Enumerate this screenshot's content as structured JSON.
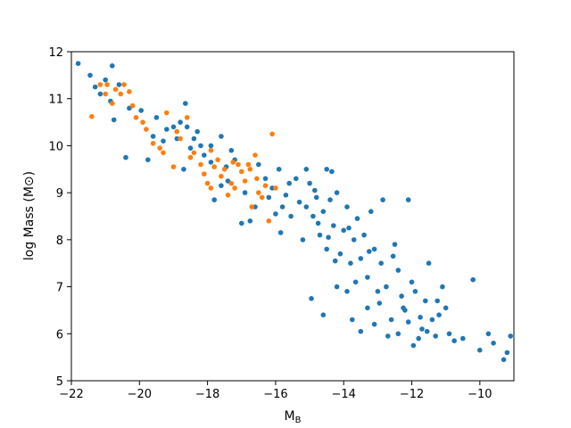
{
  "chart_data": {
    "type": "scatter",
    "xlabel_main": "M",
    "xlabel_sub": "B",
    "ylabel": "log Mass (M⊙)",
    "xlim": [
      -22,
      -9
    ],
    "ylim": [
      5,
      12
    ],
    "xticks": [
      -22,
      -20,
      -18,
      -16,
      -14,
      -12,
      -10
    ],
    "yticks": [
      5,
      6,
      7,
      8,
      9,
      10,
      11,
      12
    ],
    "xtick_labels": [
      "−22",
      "−20",
      "−18",
      "−16",
      "−14",
      "−12",
      "−10"
    ],
    "ytick_labels": [
      "5",
      "6",
      "7",
      "8",
      "9",
      "10",
      "11",
      "12"
    ],
    "grid": false,
    "series": [
      {
        "color": "#1f77b4",
        "points": [
          [
            -21.8,
            11.75
          ],
          [
            -21.45,
            11.5
          ],
          [
            -21.3,
            11.25
          ],
          [
            -21.15,
            11.1
          ],
          [
            -21.0,
            11.4
          ],
          [
            -20.8,
            11.7
          ],
          [
            -20.85,
            10.95
          ],
          [
            -20.6,
            11.3
          ],
          [
            -20.3,
            10.8
          ],
          [
            -20.75,
            10.55
          ],
          [
            -19.95,
            10.75
          ],
          [
            -19.5,
            10.6
          ],
          [
            -19.6,
            10.2
          ],
          [
            -19.75,
            9.7
          ],
          [
            -20.4,
            9.75
          ],
          [
            -19.0,
            10.4
          ],
          [
            -18.8,
            10.5
          ],
          [
            -18.65,
            10.9
          ],
          [
            -18.9,
            10.15
          ],
          [
            -18.6,
            10.4
          ],
          [
            -18.4,
            10.15
          ],
          [
            -18.7,
            9.5
          ],
          [
            -18.5,
            9.95
          ],
          [
            -18.2,
            10.0
          ],
          [
            -18.1,
            9.8
          ],
          [
            -17.9,
            9.65
          ],
          [
            -17.6,
            10.2
          ],
          [
            -17.3,
            9.9
          ],
          [
            -17.45,
            9.55
          ],
          [
            -17.2,
            9.7
          ],
          [
            -17.4,
            9.25
          ],
          [
            -17.0,
            8.35
          ],
          [
            -16.75,
            8.4
          ],
          [
            -16.6,
            8.7
          ],
          [
            -16.3,
            9.3
          ],
          [
            -16.1,
            9.1
          ],
          [
            -15.9,
            9.5
          ],
          [
            -15.7,
            8.95
          ],
          [
            -16.0,
            8.55
          ],
          [
            -15.85,
            8.15
          ],
          [
            -15.55,
            8.5
          ],
          [
            -15.4,
            9.3
          ],
          [
            -15.3,
            8.8
          ],
          [
            -15.1,
            8.7
          ],
          [
            -15.0,
            9.2
          ],
          [
            -14.9,
            8.5
          ],
          [
            -14.8,
            8.9
          ],
          [
            -14.7,
            8.1
          ],
          [
            -14.6,
            8.6
          ],
          [
            -14.5,
            7.8
          ],
          [
            -14.4,
            8.85
          ],
          [
            -14.3,
            8.3
          ],
          [
            -14.2,
            9.0
          ],
          [
            -14.1,
            7.7
          ],
          [
            -14.0,
            8.2
          ],
          [
            -13.9,
            8.7
          ],
          [
            -13.8,
            7.5
          ],
          [
            -13.7,
            8.0
          ],
          [
            -13.6,
            8.45
          ],
          [
            -13.5,
            7.6
          ],
          [
            -13.4,
            8.1
          ],
          [
            -13.3,
            7.2
          ],
          [
            -13.2,
            8.6
          ],
          [
            -13.1,
            7.8
          ],
          [
            -13.0,
            6.9
          ],
          [
            -12.9,
            7.5
          ],
          [
            -12.85,
            8.85
          ],
          [
            -12.75,
            7.0
          ],
          [
            -12.6,
            6.3
          ],
          [
            -12.5,
            7.9
          ],
          [
            -12.4,
            7.35
          ],
          [
            -12.3,
            6.8
          ],
          [
            -12.2,
            6.5
          ],
          [
            -12.1,
            8.85
          ],
          [
            -12.0,
            7.1
          ],
          [
            -11.9,
            6.9
          ],
          [
            -11.8,
            5.9
          ],
          [
            -11.7,
            6.1
          ],
          [
            -11.6,
            6.7
          ],
          [
            -11.5,
            7.5
          ],
          [
            -11.4,
            6.3
          ],
          [
            -11.3,
            5.95
          ],
          [
            -11.2,
            6.4
          ],
          [
            -11.1,
            7.0
          ],
          [
            -11.0,
            6.55
          ],
          [
            -10.9,
            6.0
          ],
          [
            -10.75,
            5.85
          ],
          [
            -10.5,
            5.9
          ],
          [
            -10.2,
            7.15
          ],
          [
            -10.0,
            5.65
          ],
          [
            -9.75,
            6.0
          ],
          [
            -9.6,
            5.8
          ],
          [
            -9.3,
            5.45
          ],
          [
            -9.2,
            5.6
          ],
          [
            -9.1,
            5.95
          ],
          [
            -15.2,
            8.0
          ],
          [
            -14.95,
            6.75
          ],
          [
            -14.6,
            6.4
          ],
          [
            -14.2,
            7.0
          ],
          [
            -13.75,
            6.3
          ],
          [
            -13.5,
            6.05
          ],
          [
            -13.1,
            6.2
          ],
          [
            -12.7,
            5.95
          ],
          [
            -12.4,
            6.0
          ],
          [
            -12.1,
            6.25
          ],
          [
            -11.95,
            5.75
          ],
          [
            -13.9,
            6.9
          ],
          [
            -13.3,
            6.55
          ],
          [
            -12.95,
            6.65
          ],
          [
            -14.5,
            9.5
          ],
          [
            -15.6,
            9.2
          ],
          [
            -15.1,
            9.5
          ],
          [
            -14.85,
            9.05
          ],
          [
            -14.35,
            9.45
          ],
          [
            -16.2,
            8.9
          ],
          [
            -16.9,
            9.0
          ],
          [
            -17.6,
            9.15
          ],
          [
            -17.8,
            8.85
          ],
          [
            -18.3,
            10.3
          ],
          [
            -19.2,
            10.35
          ],
          [
            -19.3,
            10.1
          ],
          [
            -17.9,
            10.0
          ],
          [
            -16.5,
            9.6
          ],
          [
            -15.8,
            8.7
          ],
          [
            -14.75,
            8.35
          ],
          [
            -14.25,
            7.55
          ],
          [
            -13.65,
            7.1
          ],
          [
            -13.25,
            7.75
          ],
          [
            -12.55,
            7.65
          ],
          [
            -12.25,
            6.55
          ],
          [
            -11.75,
            6.35
          ],
          [
            -11.55,
            6.05
          ],
          [
            -11.25,
            6.7
          ],
          [
            -13.85,
            8.25
          ],
          [
            -14.45,
            8.05
          ]
        ]
      },
      {
        "color": "#ff7f0e",
        "points": [
          [
            -21.4,
            10.62
          ],
          [
            -21.15,
            11.3
          ],
          [
            -21.0,
            11.1
          ],
          [
            -20.95,
            11.3
          ],
          [
            -20.7,
            11.2
          ],
          [
            -20.55,
            11.1
          ],
          [
            -20.45,
            11.3
          ],
          [
            -20.3,
            11.15
          ],
          [
            -20.8,
            10.9
          ],
          [
            -20.2,
            10.85
          ],
          [
            -20.1,
            10.6
          ],
          [
            -19.9,
            10.5
          ],
          [
            -19.8,
            10.35
          ],
          [
            -19.6,
            10.05
          ],
          [
            -19.4,
            9.95
          ],
          [
            -19.3,
            9.85
          ],
          [
            -19.2,
            10.7
          ],
          [
            -18.9,
            10.3
          ],
          [
            -18.8,
            10.15
          ],
          [
            -18.6,
            10.6
          ],
          [
            -18.4,
            9.85
          ],
          [
            -18.2,
            9.6
          ],
          [
            -18.1,
            9.4
          ],
          [
            -18.0,
            9.2
          ],
          [
            -17.9,
            9.1
          ],
          [
            -17.8,
            9.55
          ],
          [
            -17.7,
            9.7
          ],
          [
            -17.6,
            9.35
          ],
          [
            -17.5,
            9.5
          ],
          [
            -17.4,
            8.95
          ],
          [
            -17.3,
            9.2
          ],
          [
            -17.2,
            9.1
          ],
          [
            -17.1,
            9.6
          ],
          [
            -17.0,
            9.45
          ],
          [
            -16.9,
            9.25
          ],
          [
            -16.8,
            9.6
          ],
          [
            -16.7,
            8.7
          ],
          [
            -16.6,
            9.8
          ],
          [
            -16.5,
            9.0
          ],
          [
            -16.4,
            8.9
          ],
          [
            -16.3,
            9.15
          ],
          [
            -16.2,
            8.4
          ],
          [
            -16.1,
            10.25
          ],
          [
            -16.0,
            9.1
          ],
          [
            -17.9,
            9.9
          ],
          [
            -18.5,
            9.75
          ],
          [
            -19.0,
            9.55
          ],
          [
            -17.25,
            9.65
          ],
          [
            -16.75,
            9.5
          ],
          [
            -16.55,
            9.3
          ]
        ]
      }
    ]
  }
}
